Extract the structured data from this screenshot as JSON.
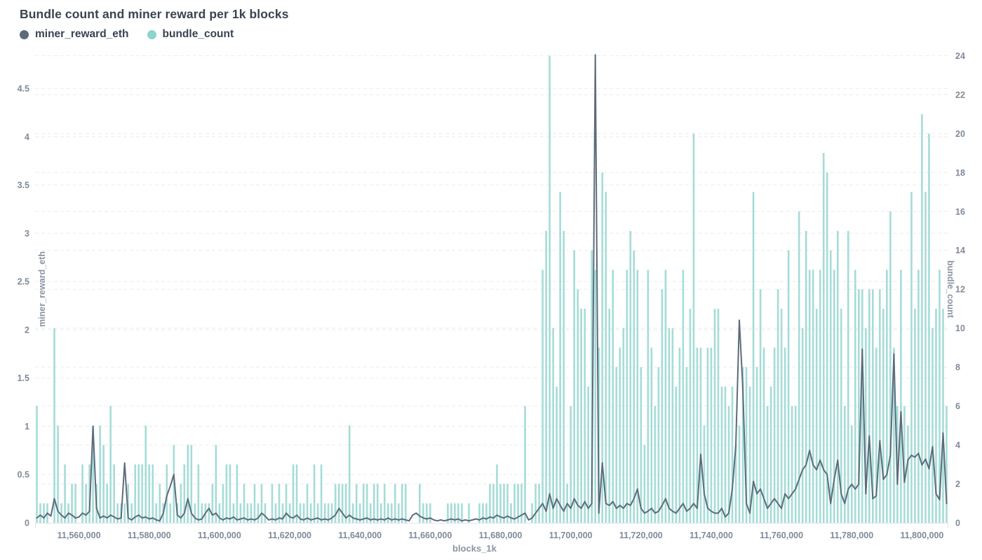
{
  "page": {
    "title": "Bundle count and miner reward per 1k blocks"
  },
  "legend": [
    {
      "label": "miner_reward_eth",
      "color": "#5d6b7b"
    },
    {
      "label": "bundle_count",
      "color": "#8ed3cd"
    }
  ],
  "colors": {
    "bar": "#a5dcd7",
    "line": "#5d6b7b",
    "grid": "#e9ebee",
    "axis_text": "#7f8a99",
    "baseline": "#dfe3e8",
    "background": "#ffffff"
  },
  "chart_data": {
    "type": "combo-bar-line",
    "title": "Bundle count and miner reward per 1k blocks",
    "xlabel": "blocks_1k",
    "grid": "horizontal dashed",
    "legend_position": "top-left",
    "x_start": 11548000,
    "x_step": 1000,
    "x_tick_values": [
      11560000,
      11580000,
      11600000,
      11620000,
      11640000,
      11660000,
      11680000,
      11700000,
      11720000,
      11740000,
      11760000,
      11780000,
      11800000
    ],
    "x_tick_labels": [
      "11,560,000",
      "11,580,000",
      "11,600,000",
      "11,620,000",
      "11,640,000",
      "11,660,000",
      "11,680,000",
      "11,700,000",
      "11,720,000",
      "11,740,000",
      "11,760,000",
      "11,780,000",
      "11,800,000"
    ],
    "y_left": {
      "label": "miner_reward_eth",
      "min": 0,
      "max": 4.85,
      "ticks": [
        0,
        0.5,
        1,
        1.5,
        2,
        2.5,
        3,
        3.5,
        4,
        4.5
      ],
      "tick_labels": [
        "0",
        "0.5",
        "1",
        "1.5",
        "2",
        "2.5",
        "3",
        "3.5",
        "4",
        "4.5"
      ]
    },
    "y_right": {
      "label": "bundle_count",
      "min": 0,
      "max": 24.05,
      "ticks": [
        0,
        2,
        4,
        6,
        8,
        10,
        12,
        14,
        16,
        18,
        20,
        22,
        24
      ],
      "tick_labels": [
        "0",
        "2",
        "4",
        "6",
        "8",
        "10",
        "12",
        "14",
        "16",
        "18",
        "20",
        "22",
        "24"
      ]
    },
    "series": [
      {
        "name": "miner_reward_eth",
        "type": "line",
        "axis": "left",
        "color": "#5d6b7b",
        "values": [
          0.05,
          0.08,
          0.05,
          0.1,
          0.07,
          0.25,
          0.12,
          0.08,
          0.05,
          0.1,
          0.08,
          0.05,
          0.06,
          0.1,
          0.08,
          0.12,
          1,
          0.15,
          0.05,
          0.07,
          0.05,
          0.08,
          0.06,
          0.04,
          0.05,
          0.62,
          0.05,
          0.03,
          0.06,
          0.08,
          0.05,
          0.06,
          0.04,
          0.05,
          0.03,
          0.02,
          0.1,
          0.28,
          0.38,
          0.5,
          0.08,
          0.05,
          0.1,
          0.25,
          0.1,
          0.05,
          0.03,
          0.04,
          0.1,
          0.15,
          0.08,
          0.1,
          0.05,
          0.03,
          0.05,
          0.04,
          0.06,
          0.03,
          0.04,
          0.05,
          0.03,
          0.04,
          0.03,
          0.05,
          0.1,
          0.07,
          0.03,
          0.04,
          0.03,
          0.05,
          0.04,
          0.1,
          0.06,
          0.05,
          0.08,
          0.04,
          0.03,
          0.05,
          0.03,
          0.04,
          0.05,
          0.03,
          0.04,
          0.03,
          0.05,
          0.08,
          0.15,
          0.1,
          0.05,
          0.08,
          0.05,
          0.04,
          0.03,
          0.04,
          0.05,
          0.03,
          0.04,
          0.03,
          0.04,
          0.03,
          0.05,
          0.03,
          0.04,
          0.03,
          0.04,
          0.03,
          0.02,
          0.08,
          0.1,
          0.07,
          0.05,
          0.04,
          0.05,
          0.03,
          0.02,
          0.03,
          0.02,
          0.03,
          0.04,
          0.03,
          0.04,
          0.02,
          0.03,
          0.02,
          0.03,
          0.04,
          0.03,
          0.05,
          0.04,
          0.06,
          0.05,
          0.08,
          0.06,
          0.05,
          0.07,
          0.05,
          0.04,
          0.06,
          0.08,
          0.1,
          0.03,
          0.05,
          0.1,
          0.15,
          0.2,
          0.12,
          0.3,
          0.15,
          0.25,
          0.18,
          0.12,
          0.2,
          0.15,
          0.25,
          0.18,
          0.15,
          0.22,
          0.15,
          0.2,
          4.85,
          0.1,
          0.62,
          0.2,
          0.18,
          0.22,
          0.15,
          0.18,
          0.15,
          0.2,
          0.18,
          0.25,
          0.35,
          0.15,
          0.1,
          0.12,
          0.15,
          0.1,
          0.12,
          0.18,
          0.25,
          0.15,
          0.12,
          0.1,
          0.15,
          0.2,
          0.12,
          0.15,
          0.2,
          0.15,
          0.71,
          0.3,
          0.15,
          0.12,
          0.1,
          0.1,
          0.15,
          0.06,
          0.1,
          0.35,
          0.8,
          2.1,
          1.4,
          0.2,
          0.1,
          0.43,
          0.3,
          0.35,
          0.25,
          0.15,
          0.2,
          0.25,
          0.2,
          0.15,
          0.3,
          0.25,
          0.3,
          0.35,
          0.45,
          0.55,
          0.6,
          0.75,
          0.6,
          0.55,
          0.65,
          0.55,
          0.5,
          0.2,
          0.45,
          0.65,
          0.3,
          0.2,
          0.35,
          0.4,
          0.35,
          0.4,
          1.8,
          0.3,
          0.9,
          0.25,
          0.28,
          0.85,
          0.45,
          0.5,
          0.7,
          1.75,
          0.4,
          1.15,
          0.42,
          0.65,
          0.7,
          0.68,
          0.72,
          0.6,
          0.66,
          0.56,
          0.79,
          0.3,
          0.24,
          0.93,
          0.2
        ]
      },
      {
        "name": "bundle_count",
        "type": "bar",
        "axis": "right",
        "color": "#a5dcd7",
        "values": [
          6,
          1,
          1,
          1,
          0,
          10,
          5,
          1,
          3,
          1,
          2,
          2,
          0,
          3,
          2,
          3,
          5,
          2,
          5,
          4,
          2,
          6,
          3,
          1,
          1,
          1,
          2,
          1,
          3,
          3,
          3,
          5,
          3,
          3,
          1,
          2,
          1,
          3,
          1,
          4,
          1,
          2,
          3,
          4,
          4,
          1,
          3,
          1,
          1,
          1,
          2,
          4,
          1,
          2,
          3,
          3,
          1,
          3,
          1,
          2,
          1,
          1,
          2,
          1,
          2,
          1,
          0,
          2,
          1,
          2,
          1,
          2,
          1,
          3,
          3,
          1,
          1,
          2,
          1,
          3,
          1,
          3,
          1,
          1,
          1,
          2,
          2,
          2,
          2,
          5,
          1,
          2,
          1,
          2,
          2,
          1,
          2,
          2,
          1,
          2,
          1,
          1,
          2,
          1,
          2,
          2,
          0,
          0,
          0,
          2,
          1,
          1,
          1,
          0,
          0,
          0,
          0,
          1,
          1,
          1,
          1,
          1,
          0,
          1,
          0,
          0,
          1,
          1,
          1,
          2,
          2,
          3,
          2,
          2,
          2,
          1,
          2,
          2,
          2,
          6,
          0,
          1,
          2,
          2,
          13,
          15,
          24,
          10,
          7,
          17,
          15,
          2,
          6,
          14,
          12,
          11,
          11,
          7,
          14,
          13,
          9,
          18,
          17,
          11,
          13,
          8,
          9,
          10,
          13,
          15,
          14,
          13,
          8,
          4,
          13,
          9,
          6,
          8,
          12,
          13,
          10,
          10,
          7,
          9,
          13,
          8,
          11,
          20,
          9,
          9,
          5,
          9,
          9,
          11,
          11,
          7,
          7,
          6,
          7,
          4,
          5,
          8,
          8,
          7,
          17,
          8,
          12,
          9,
          6,
          7,
          9,
          12,
          11,
          9,
          14,
          6,
          6,
          16,
          10,
          15,
          13,
          13,
          11,
          13,
          19,
          18,
          14,
          13,
          15,
          11,
          6,
          15,
          5,
          13,
          12,
          12,
          10,
          12,
          12,
          9,
          12,
          11,
          13,
          16,
          9,
          6,
          13,
          6,
          5,
          17,
          11,
          13,
          21,
          17,
          20,
          10,
          11,
          13,
          11,
          6
        ]
      }
    ]
  }
}
